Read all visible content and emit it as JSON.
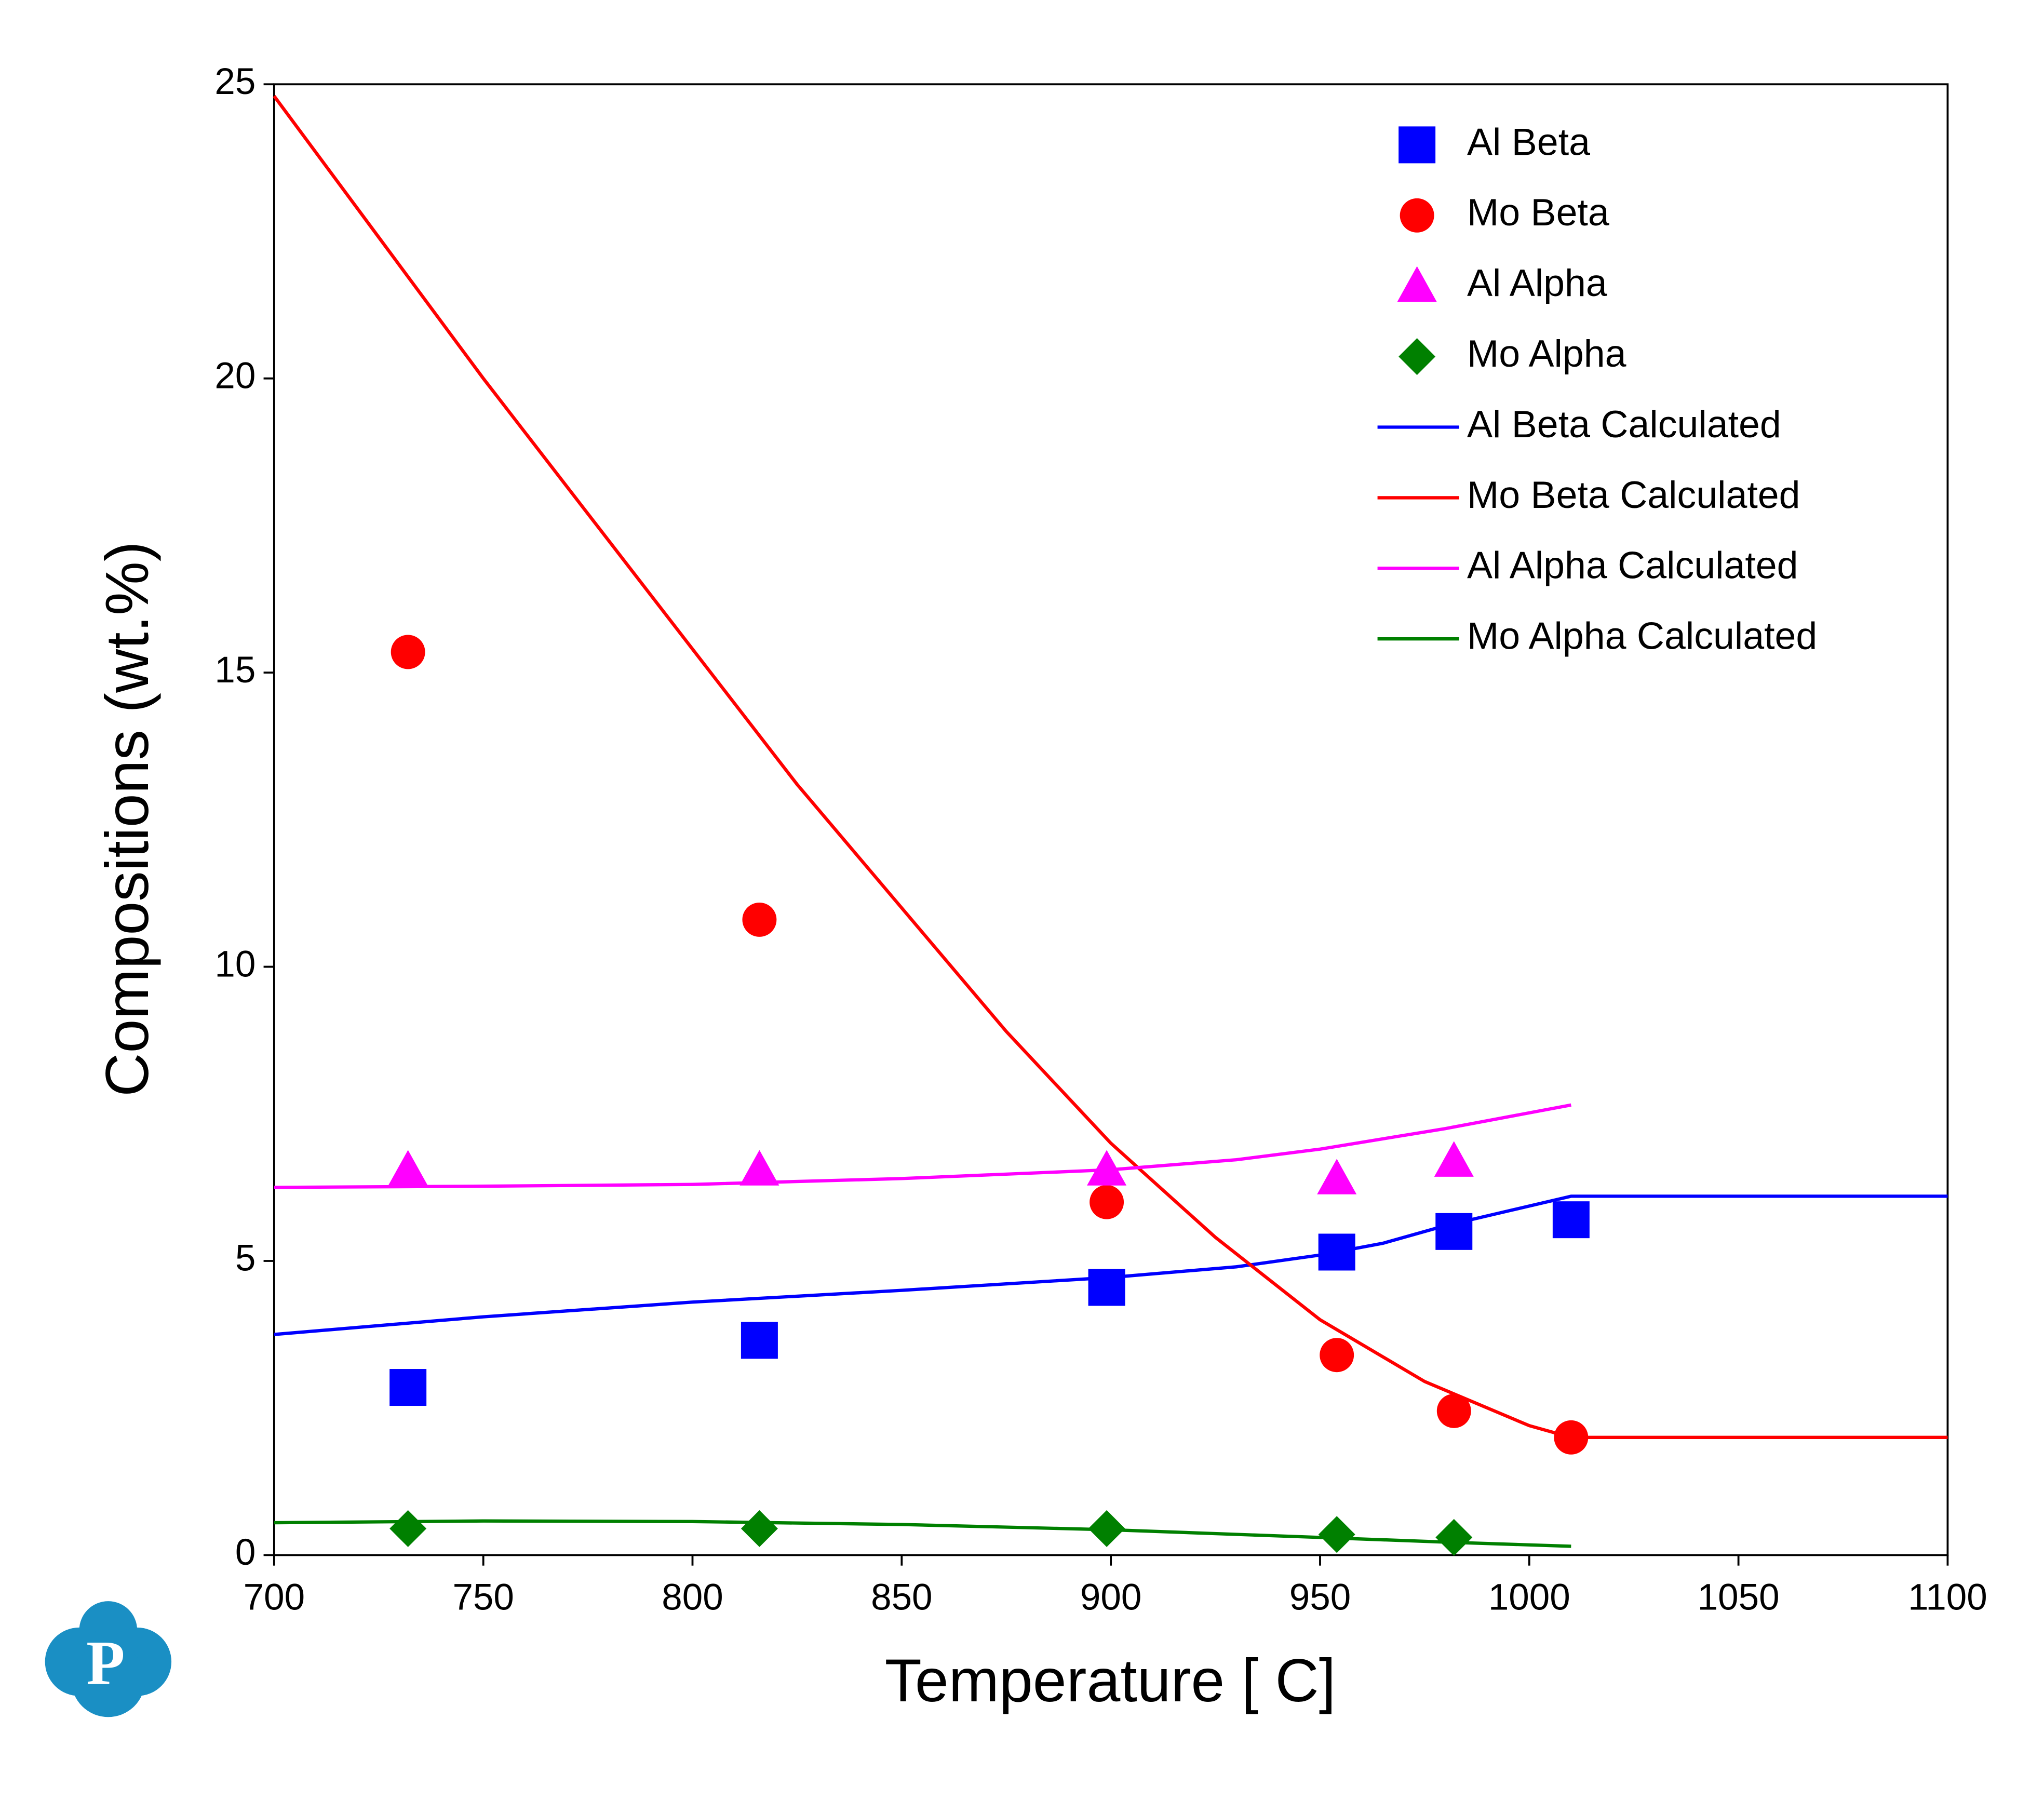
{
  "chart_data": {
    "type": "scatter",
    "x_label": "Temperature [ C]",
    "y_label": "Compositions (wt.%)",
    "xlim": [
      700,
      1100
    ],
    "ylim": [
      0,
      25
    ],
    "xticks": [
      700,
      750,
      800,
      850,
      900,
      950,
      1000,
      1050,
      1100
    ],
    "yticks": [
      0,
      5,
      10,
      15,
      20,
      25
    ],
    "legend": "upper right",
    "series": [
      {
        "name": "Al Beta",
        "color": "#0000ff",
        "marker": "square",
        "x": [
          732,
          816,
          899,
          954,
          982,
          1010
        ],
        "values": [
          2.85,
          3.65,
          4.55,
          5.15,
          5.5,
          5.7
        ]
      },
      {
        "name": "Mo Beta",
        "color": "#ff0000",
        "marker": "circle",
        "x": [
          732,
          816,
          899,
          954,
          982,
          1010
        ],
        "values": [
          15.35,
          10.8,
          6.0,
          3.4,
          2.45,
          2.0
        ]
      },
      {
        "name": "Al Alpha",
        "color": "#ff00ff",
        "marker": "triangle",
        "x": [
          732,
          816,
          899,
          954,
          982
        ],
        "values": [
          6.55,
          6.55,
          6.55,
          6.4,
          6.7
        ]
      },
      {
        "name": "Mo Alpha",
        "color": "#008000",
        "marker": "diamond",
        "x": [
          732,
          816,
          899,
          954,
          982
        ],
        "values": [
          0.45,
          0.45,
          0.45,
          0.35,
          0.3
        ]
      },
      {
        "name": "Al Beta Calculated",
        "color": "#0000ff",
        "marker": "line",
        "x": [
          700,
          750,
          800,
          850,
          900,
          930,
          950,
          965,
          980,
          995,
          1010,
          1050,
          1100
        ],
        "values": [
          3.75,
          4.05,
          4.3,
          4.5,
          4.72,
          4.9,
          5.1,
          5.3,
          5.6,
          5.85,
          6.1,
          6.1,
          6.1
        ]
      },
      {
        "name": "Mo Beta Calculated",
        "color": "#ff0000",
        "marker": "line",
        "x": [
          700,
          725,
          750,
          775,
          800,
          825,
          850,
          875,
          900,
          925,
          950,
          975,
          1000,
          1010,
          1050,
          1100
        ],
        "values": [
          24.8,
          22.4,
          20.0,
          17.7,
          15.4,
          13.1,
          11.0,
          8.9,
          7.0,
          5.4,
          4.0,
          2.95,
          2.2,
          2.0,
          2.0,
          2.0
        ]
      },
      {
        "name": "Al Alpha Calculated",
        "color": "#ff00ff",
        "marker": "line",
        "x": [
          700,
          750,
          800,
          850,
          900,
          930,
          950,
          980,
          1010
        ],
        "values": [
          6.25,
          6.27,
          6.3,
          6.4,
          6.55,
          6.72,
          6.9,
          7.25,
          7.65
        ]
      },
      {
        "name": "Mo Alpha Calculated",
        "color": "#008000",
        "marker": "line",
        "x": [
          700,
          750,
          800,
          850,
          900,
          950,
          980,
          1010
        ],
        "values": [
          0.55,
          0.58,
          0.57,
          0.52,
          0.43,
          0.3,
          0.22,
          0.15
        ]
      }
    ]
  },
  "logo_text": "P"
}
